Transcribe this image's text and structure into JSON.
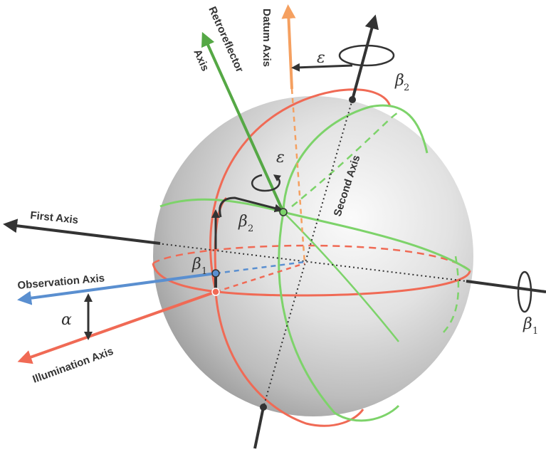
{
  "labels": {
    "retroreflector_axis_line1": "Retroreflector",
    "retroreflector_axis_line2": "Axis",
    "datum_axis": "Datum Axis",
    "second_axis": "Second Axis",
    "first_axis": "First Axis",
    "observation_axis": "Observation Axis",
    "illumination_axis": "Illumination Axis"
  },
  "symbols": {
    "epsilon": "ε",
    "beta": "β",
    "alpha": "α",
    "sub_1": "1",
    "sub_2": "2"
  },
  "colors": {
    "red_circle": "#f06a55",
    "green_circle": "#7dd36a",
    "green_axis": "#55a845",
    "orange_axis": "#f5a060",
    "blue_axis": "#5a8fd0",
    "dark": "#333333"
  }
}
